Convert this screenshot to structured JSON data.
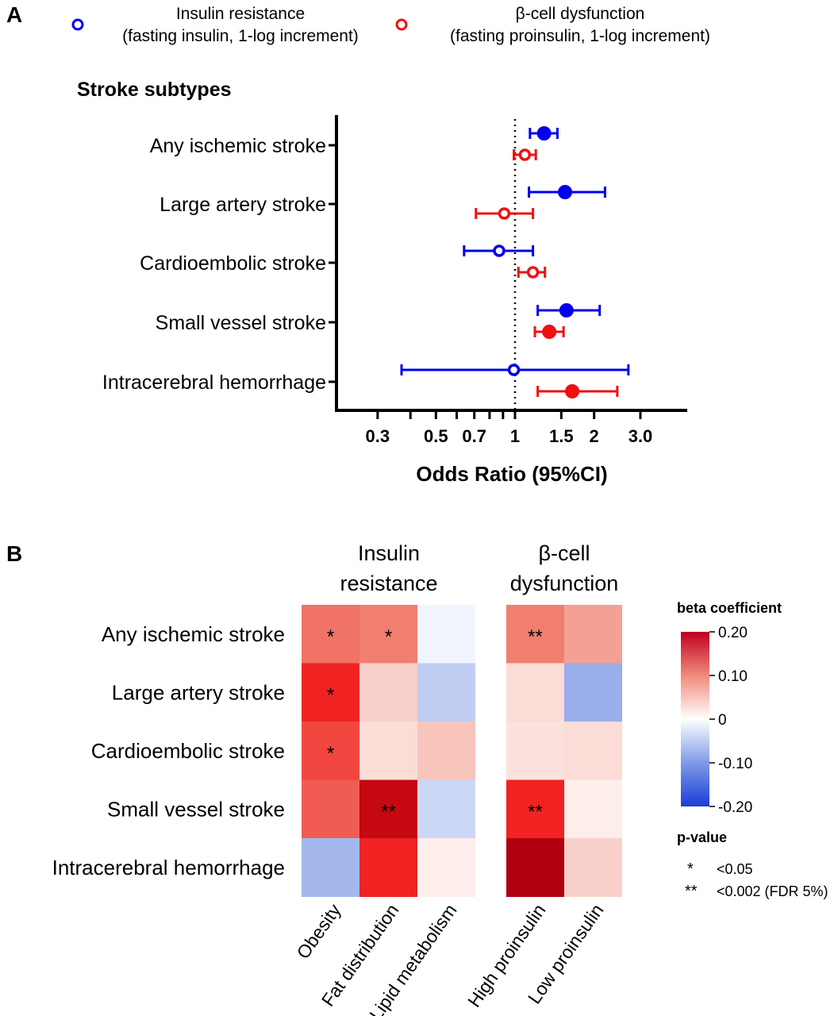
{
  "chart_data": [
    {
      "type": "forest",
      "panel_label": "A",
      "title": "Stroke subtypes",
      "xlabel": "Odds Ratio (95%CI)",
      "ylabel": "",
      "x_scale": "log",
      "xlim": [
        0.25,
        4.0
      ],
      "x_ticks": [
        {
          "value": 0.3,
          "label": "0.3"
        },
        {
          "value": 0.4,
          "label": ""
        },
        {
          "value": 0.5,
          "label": "0.5"
        },
        {
          "value": 0.6,
          "label": ""
        },
        {
          "value": 0.7,
          "label": "0.7"
        },
        {
          "value": 0.8,
          "label": ""
        },
        {
          "value": 0.9,
          "label": ""
        },
        {
          "value": 1.0,
          "label": "1"
        },
        {
          "value": 1.5,
          "label": "1.5"
        },
        {
          "value": 2.0,
          "label": "2"
        },
        {
          "value": 3.0,
          "label": "3.0"
        }
      ],
      "reference_line": 1.0,
      "categories": [
        "Any ischemic stroke",
        "Large artery stroke",
        "Cardioembolic stroke",
        "Small vessel stroke",
        "Intracerebral hemorrhage"
      ],
      "legend": [
        {
          "line1": "Insulin resistance",
          "line2": "(fasting insulin, 1-log increment)",
          "color": "#0000ee"
        },
        {
          "line1": "β-cell dysfunction",
          "line2": "(fasting proinsulin, 1-log increment)",
          "color": "#ee1111"
        }
      ],
      "series": [
        {
          "name": "Insulin resistance",
          "color": "#0000ee",
          "values": [
            {
              "or": 1.29,
              "lo": 1.14,
              "hi": 1.45,
              "significant": true
            },
            {
              "or": 1.55,
              "lo": 1.13,
              "hi": 2.2,
              "significant": true
            },
            {
              "or": 0.87,
              "lo": 0.64,
              "hi": 1.17,
              "significant": false
            },
            {
              "or": 1.57,
              "lo": 1.22,
              "hi": 2.1,
              "significant": true
            },
            {
              "or": 0.99,
              "lo": 0.37,
              "hi": 2.7,
              "significant": false
            }
          ]
        },
        {
          "name": "β-cell dysfunction",
          "color": "#ee1111",
          "values": [
            {
              "or": 1.09,
              "lo": 0.99,
              "hi": 1.2,
              "significant": false
            },
            {
              "or": 0.91,
              "lo": 0.71,
              "hi": 1.17,
              "significant": false
            },
            {
              "or": 1.17,
              "lo": 1.03,
              "hi": 1.3,
              "significant": false
            },
            {
              "or": 1.35,
              "lo": 1.19,
              "hi": 1.53,
              "significant": true
            },
            {
              "or": 1.65,
              "lo": 1.22,
              "hi": 2.45,
              "significant": true
            }
          ]
        }
      ]
    },
    {
      "type": "heatmap",
      "panel_label": "B",
      "groups": [
        {
          "line1": "Insulin",
          "line2": "resistance",
          "columns": [
            "Obesity",
            "Fat distribution",
            "Lipid metabolism"
          ]
        },
        {
          "line1": "β-cell",
          "line2": "dysfunction",
          "columns": [
            "High proinsulin",
            "Low proinsulin"
          ]
        }
      ],
      "rows": [
        "Any ischemic stroke",
        "Large artery stroke",
        "Cardioembolic stroke",
        "Small vessel stroke",
        "Intracerebral hemorrhage"
      ],
      "values": [
        [
          0.12,
          0.11,
          -0.01,
          0.11,
          0.08
        ],
        [
          0.19,
          0.04,
          -0.05,
          0.03,
          -0.08
        ],
        [
          0.16,
          0.03,
          0.05,
          0.025,
          0.03
        ],
        [
          0.14,
          0.24,
          -0.04,
          0.19,
          0.015
        ],
        [
          -0.07,
          0.19,
          0.015,
          0.26,
          0.04
        ]
      ],
      "annotations": [
        [
          "*",
          "*",
          "",
          "**",
          ""
        ],
        [
          "*",
          "",
          "",
          "",
          ""
        ],
        [
          "*",
          "",
          "",
          "",
          ""
        ],
        [
          "",
          "**",
          "",
          "**",
          ""
        ],
        [
          "",
          "",
          "",
          "",
          ""
        ]
      ],
      "colorbar": {
        "title": "beta coefficient",
        "range": [
          -0.2,
          0.2
        ],
        "ticks": [
          {
            "value": 0.2,
            "label": "0.20"
          },
          {
            "value": 0.1,
            "label": "0.10"
          },
          {
            "value": 0.0,
            "label": "0"
          },
          {
            "value": -0.1,
            "label": "-0.10"
          },
          {
            "value": -0.2,
            "label": "-0.20"
          }
        ]
      },
      "pvalue_legend": {
        "title": "p-value",
        "entries": [
          {
            "symbol": "*",
            "text": "<0.05"
          },
          {
            "symbol": "**",
            "text": "<0.002 (FDR 5%)"
          }
        ]
      }
    }
  ]
}
